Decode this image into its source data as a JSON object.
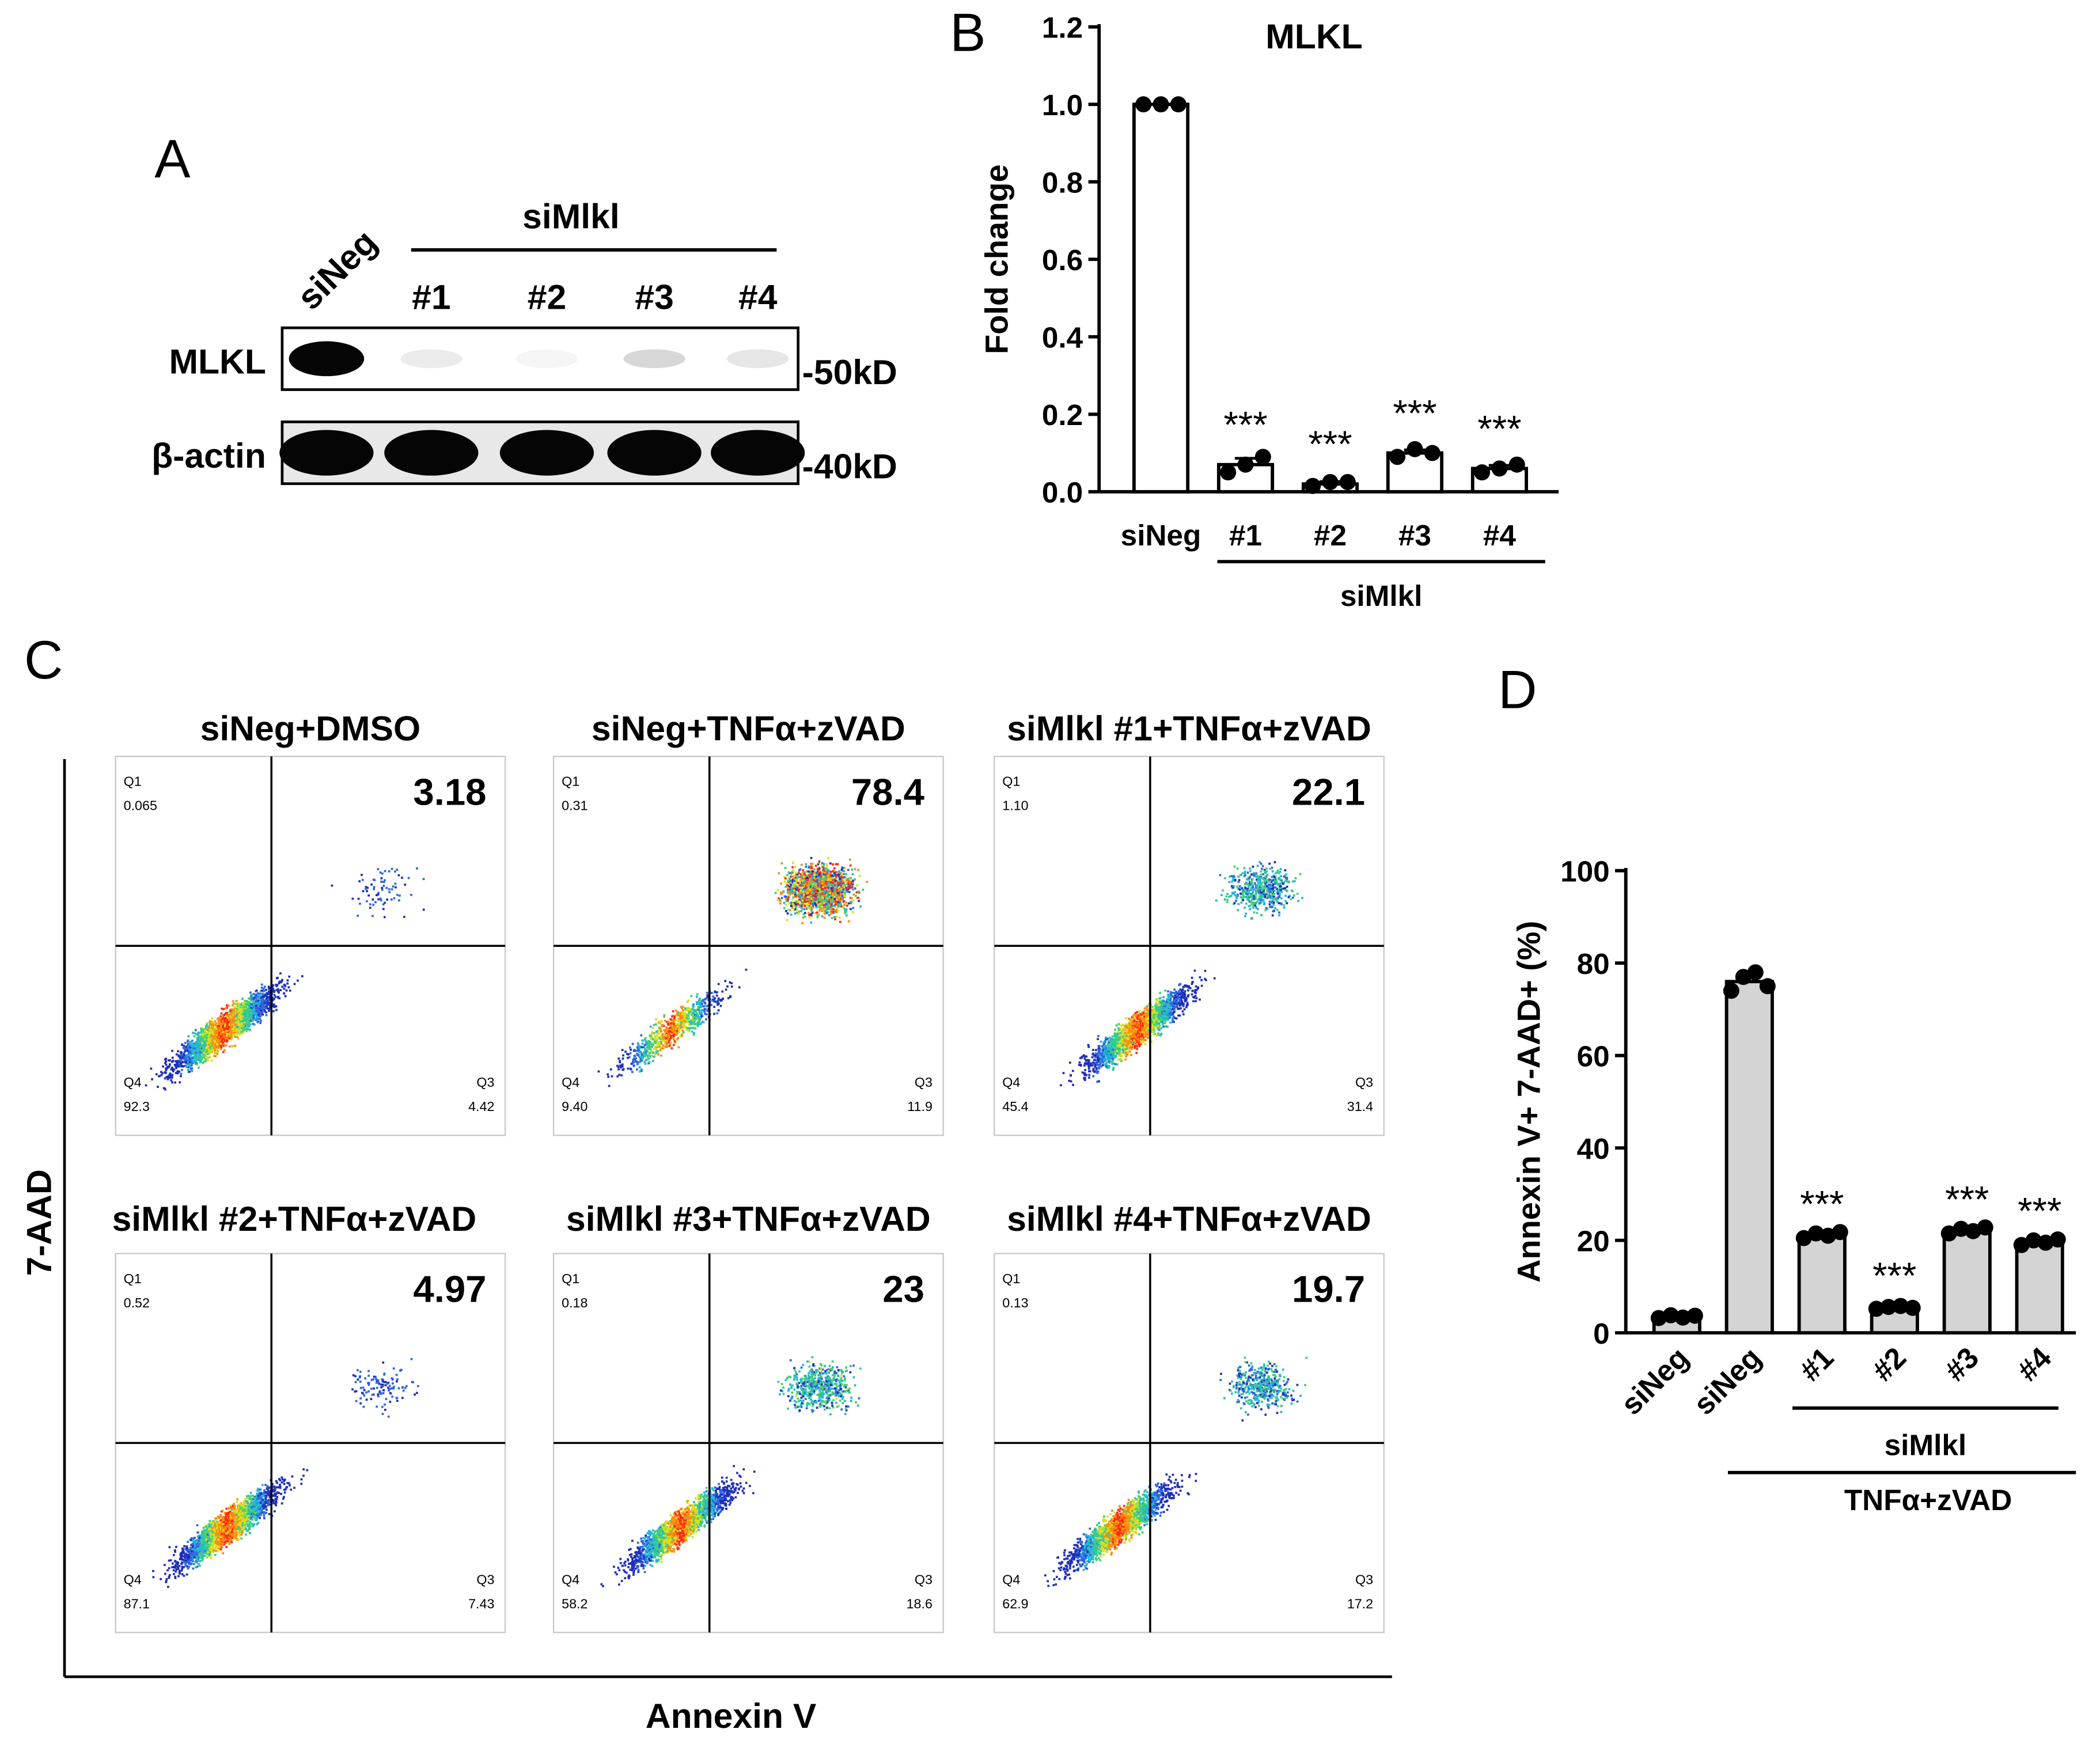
{
  "panel_labels": {
    "a": "A",
    "b": "B",
    "c": "C",
    "d": "D"
  },
  "colors": {
    "bar_b": "#ffffff",
    "bar_d": "#d4d4d4",
    "ink": "#000000"
  },
  "western_blot": {
    "top_label": "siMlkl",
    "lane_labels": [
      "siNeg",
      "#1",
      "#2",
      "#3",
      "#4"
    ],
    "rows": [
      {
        "label": "MLKL",
        "marker": "-50kD",
        "band_intensity": [
          1.0,
          0.08,
          0.04,
          0.16,
          0.1
        ]
      },
      {
        "label": "β-actin",
        "marker": "-40kD",
        "band_intensity": [
          1.0,
          1.0,
          1.0,
          1.0,
          1.0
        ]
      }
    ]
  },
  "flow": {
    "xlabel": "Annexin V",
    "ylabel": "7-AAD",
    "panels": [
      {
        "title": "siNeg+DMSO",
        "big": "3.18",
        "q1_name": "Q1",
        "q1": "0.065",
        "q3_name": "Q3",
        "q3": "4.42",
        "q4_name": "Q4",
        "q4": "92.3"
      },
      {
        "title": "siNeg+TNFα+zVAD",
        "big": "78.4",
        "q1_name": "Q1",
        "q1": "0.31",
        "q3_name": "Q3",
        "q3": "11.9",
        "q4_name": "Q4",
        "q4": "9.40"
      },
      {
        "title": "siMlkl #1+TNFα+zVAD",
        "big": "22.1",
        "q1_name": "Q1",
        "q1": "1.10",
        "q3_name": "Q3",
        "q3": "31.4",
        "q4_name": "Q4",
        "q4": "45.4"
      },
      {
        "title": "siMlkl #2+TNFα+zVAD",
        "big": "4.97",
        "q1_name": "Q1",
        "q1": "0.52",
        "q3_name": "Q3",
        "q3": "7.43",
        "q4_name": "Q4",
        "q4": "87.1"
      },
      {
        "title": "siMlkl #3+TNFα+zVAD",
        "big": "23",
        "q1_name": "Q1",
        "q1": "0.18",
        "q3_name": "Q3",
        "q3": "18.6",
        "q4_name": "Q4",
        "q4": "58.2"
      },
      {
        "title": "siMlkl #4+TNFα+zVAD",
        "big": "19.7",
        "q1_name": "Q1",
        "q1": "0.13",
        "q3_name": "Q3",
        "q3": "17.2",
        "q4_name": "Q4",
        "q4": "62.9"
      }
    ]
  },
  "chart_data": [
    {
      "type": "bar",
      "title": "MLKL",
      "xlabel": "",
      "ylabel": "Fold change",
      "ylim": [
        0,
        1.2
      ],
      "yticks": [
        0.0,
        0.2,
        0.4,
        0.6,
        0.8,
        1.0,
        1.2
      ],
      "tick_labels": [
        "0.0",
        "0.2",
        "0.4",
        "0.6",
        "0.8",
        "1.0",
        "1.2"
      ],
      "categories": [
        "siNeg",
        "#1",
        "#2",
        "#3",
        "#4"
      ],
      "values": [
        1.0,
        0.07,
        0.02,
        0.1,
        0.06
      ],
      "points": [
        [
          1.0,
          1.0,
          1.0
        ],
        [
          0.05,
          0.07,
          0.09
        ],
        [
          0.015,
          0.025,
          0.025
        ],
        [
          0.09,
          0.11,
          0.1
        ],
        [
          0.05,
          0.06,
          0.07
        ]
      ],
      "significance": [
        "",
        "***",
        "***",
        "***",
        "***"
      ],
      "group_label": "siMlkl"
    },
    {
      "type": "bar",
      "title": "",
      "xlabel": "",
      "ylabel": "Annexin V+ 7-AAD+ (%)",
      "ylim": [
        0,
        100
      ],
      "yticks": [
        0,
        20,
        40,
        60,
        80,
        100
      ],
      "tick_labels": [
        "0",
        "20",
        "40",
        "60",
        "80",
        "100"
      ],
      "categories": [
        "siNeg",
        "siNeg",
        "#1",
        "#2",
        "#3",
        "#4"
      ],
      "values": [
        3.5,
        76,
        21,
        5.5,
        22,
        19.5
      ],
      "points": [
        [
          3.2,
          3.8,
          3.3,
          3.7
        ],
        [
          74,
          77,
          78,
          75
        ],
        [
          20.5,
          21.5,
          21,
          21.8
        ],
        [
          5.2,
          5.6,
          5.8,
          5.4
        ],
        [
          21.5,
          22.5,
          22,
          22.8
        ],
        [
          19,
          20,
          19.5,
          20.2
        ]
      ],
      "significance": [
        "",
        "",
        "***",
        "***",
        "***",
        "***"
      ],
      "group_label_inner": "siMlkl",
      "group_label_outer": "TNFα+zVAD"
    }
  ]
}
